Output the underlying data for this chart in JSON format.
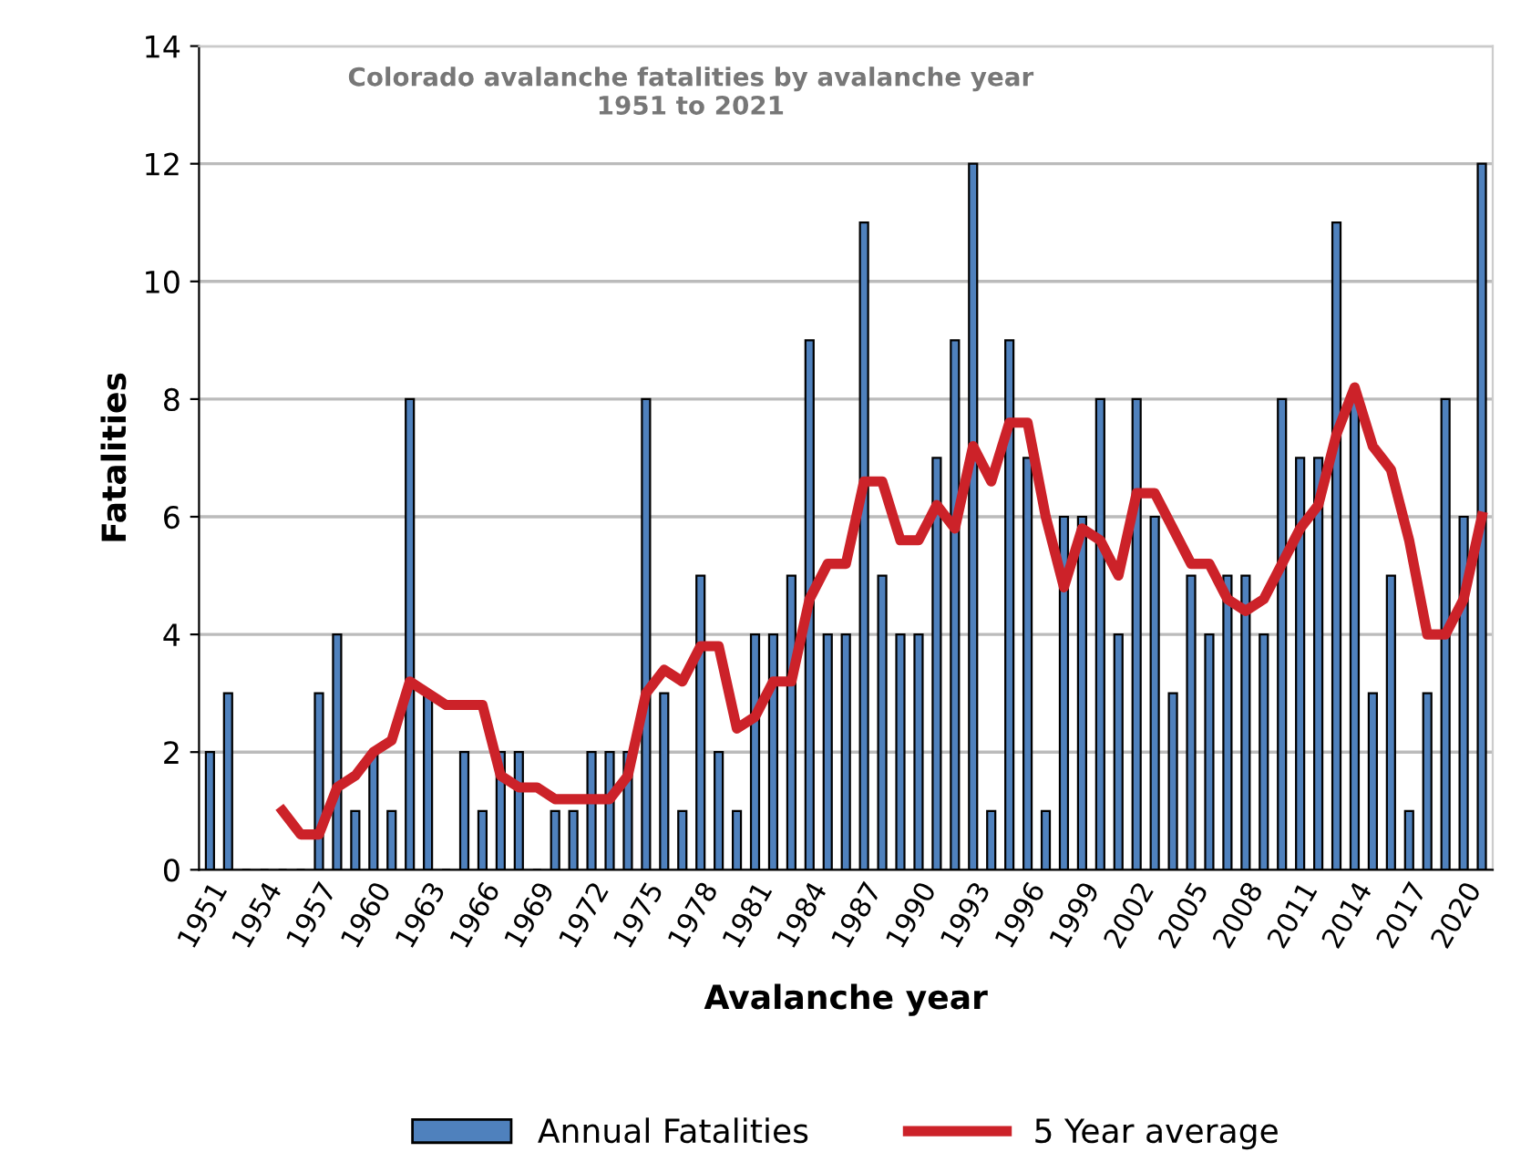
{
  "chart_data": {
    "type": "bar",
    "title": "Colorado avalanche fatalities by avalanche year\n1951 to 2021",
    "xlabel": "Avalanche year",
    "ylabel": "Fatalities",
    "categories": [
      "1951",
      null,
      null,
      "1954",
      null,
      null,
      "1957",
      null,
      null,
      "1960",
      null,
      null,
      "1963",
      null,
      null,
      "1966",
      null,
      null,
      "1969",
      null,
      null,
      "1972",
      null,
      null,
      "1975",
      null,
      null,
      "1978",
      null,
      null,
      "1981",
      null,
      null,
      "1984",
      null,
      null,
      "1987",
      null,
      null,
      "1990",
      null,
      null,
      "1993",
      null,
      null,
      "1996",
      null,
      null,
      "1999",
      null,
      null,
      "2002",
      null,
      null,
      "2005",
      null,
      null,
      "2008",
      null,
      null,
      "2011",
      null,
      null,
      "2014",
      null,
      null,
      "2017",
      null,
      null,
      "2020",
      null
    ],
    "series": [
      {
        "name": "Annual Fatalities",
        "color": "#4f81bd",
        "values": [
          2,
          3,
          0,
          0,
          0,
          0,
          3,
          4,
          1,
          2,
          1,
          8,
          3,
          0,
          2,
          1,
          2,
          2,
          0,
          1,
          1,
          2,
          2,
          2,
          8,
          3,
          1,
          5,
          2,
          1,
          4,
          4,
          5,
          9,
          4,
          4,
          11,
          5,
          4,
          4,
          7,
          9,
          12,
          1,
          9,
          7,
          1,
          6,
          6,
          8,
          4,
          8,
          6,
          3,
          5,
          4,
          5,
          5,
          4,
          8,
          7,
          7,
          11,
          8,
          3,
          5,
          1,
          3,
          8,
          6,
          12
        ]
      },
      {
        "name": "5 Year average",
        "type": "line",
        "color": "#cc2229",
        "values": [
          null,
          null,
          null,
          null,
          1.0,
          0.6,
          0.6,
          1.4,
          1.6,
          2.0,
          2.2,
          3.2,
          3.0,
          2.8,
          2.8,
          2.8,
          1.6,
          1.4,
          1.4,
          1.2,
          1.2,
          1.2,
          1.2,
          1.6,
          3.0,
          3.4,
          3.2,
          3.8,
          3.8,
          2.4,
          2.6,
          3.2,
          3.2,
          4.6,
          5.2,
          5.2,
          6.6,
          6.6,
          5.6,
          5.6,
          6.2,
          5.8,
          7.2,
          6.6,
          7.6,
          7.6,
          6.0,
          4.8,
          5.8,
          5.6,
          5.0,
          6.4,
          6.4,
          5.8,
          5.2,
          5.2,
          4.6,
          4.4,
          4.6,
          5.2,
          5.8,
          6.2,
          7.4,
          8.2,
          7.2,
          6.8,
          5.6,
          4.0,
          4.0,
          4.6,
          6.0
        ]
      }
    ],
    "ylim": [
      0,
      14
    ],
    "yticks": [
      0,
      2,
      4,
      6,
      8,
      10,
      12,
      14
    ],
    "grid": "y",
    "legend": "bottom"
  }
}
